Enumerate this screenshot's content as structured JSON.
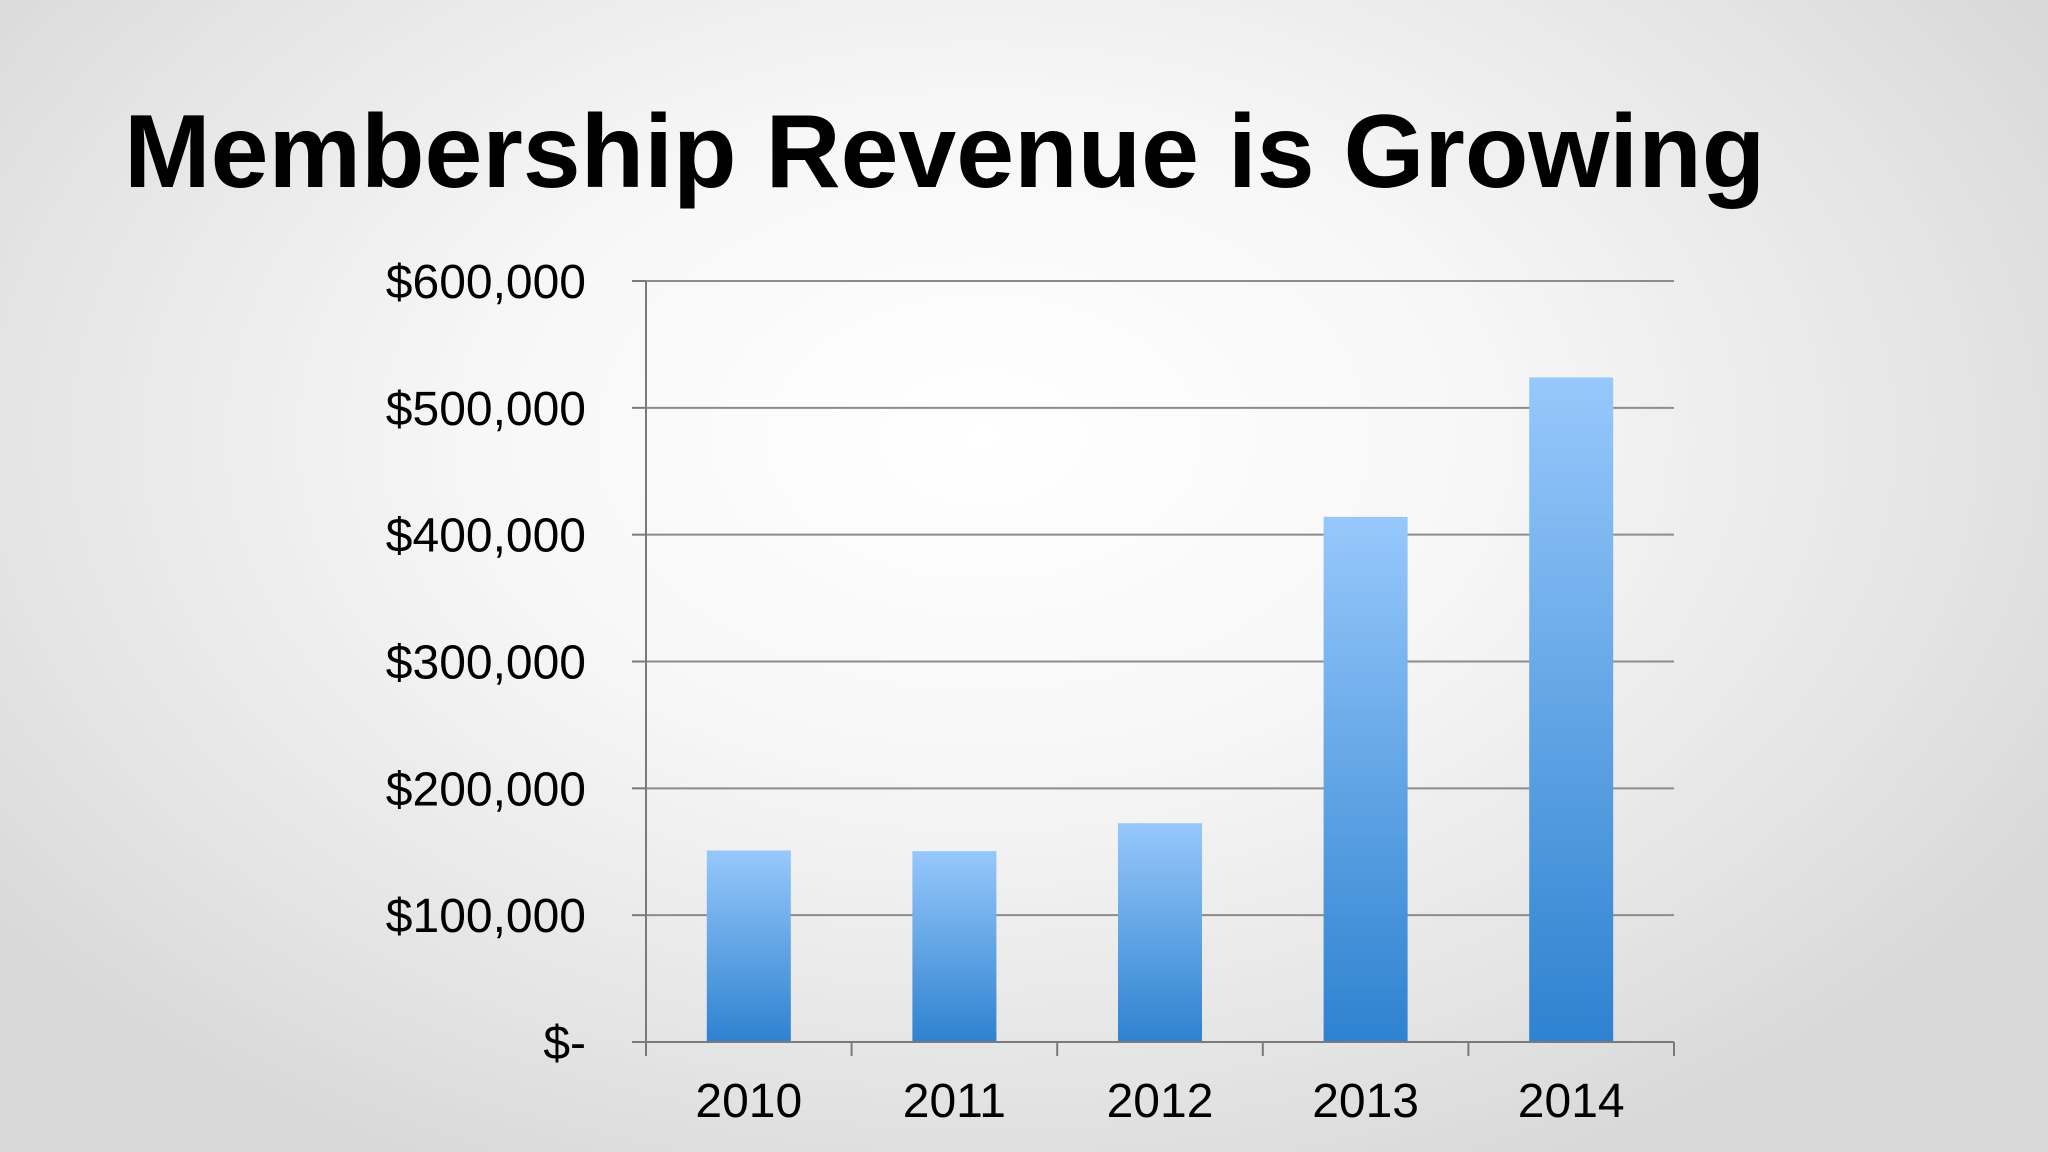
{
  "slide": {
    "title": "Membership Revenue is Growing"
  },
  "chart_data": {
    "type": "bar",
    "title": "",
    "xlabel": "",
    "ylabel": "",
    "categories": [
      "2010",
      "2011",
      "2012",
      "2013",
      "2014"
    ],
    "values": [
      151000,
      150500,
      172500,
      414000,
      524000
    ],
    "ylim": [
      0,
      600000
    ],
    "yticks": [
      0,
      100000,
      200000,
      300000,
      400000,
      500000,
      600000
    ],
    "ytick_labels": [
      "$-",
      "$100,000",
      "$200,000",
      "$300,000",
      "$400,000",
      "$500,000",
      "$600,000"
    ],
    "grid": true,
    "legend": "none",
    "colors": {
      "bar_top": "#97c8fb",
      "bar_bottom": "#2e82d0",
      "gridline": "#8c8c8c",
      "axis": "#7a7a7a"
    }
  }
}
